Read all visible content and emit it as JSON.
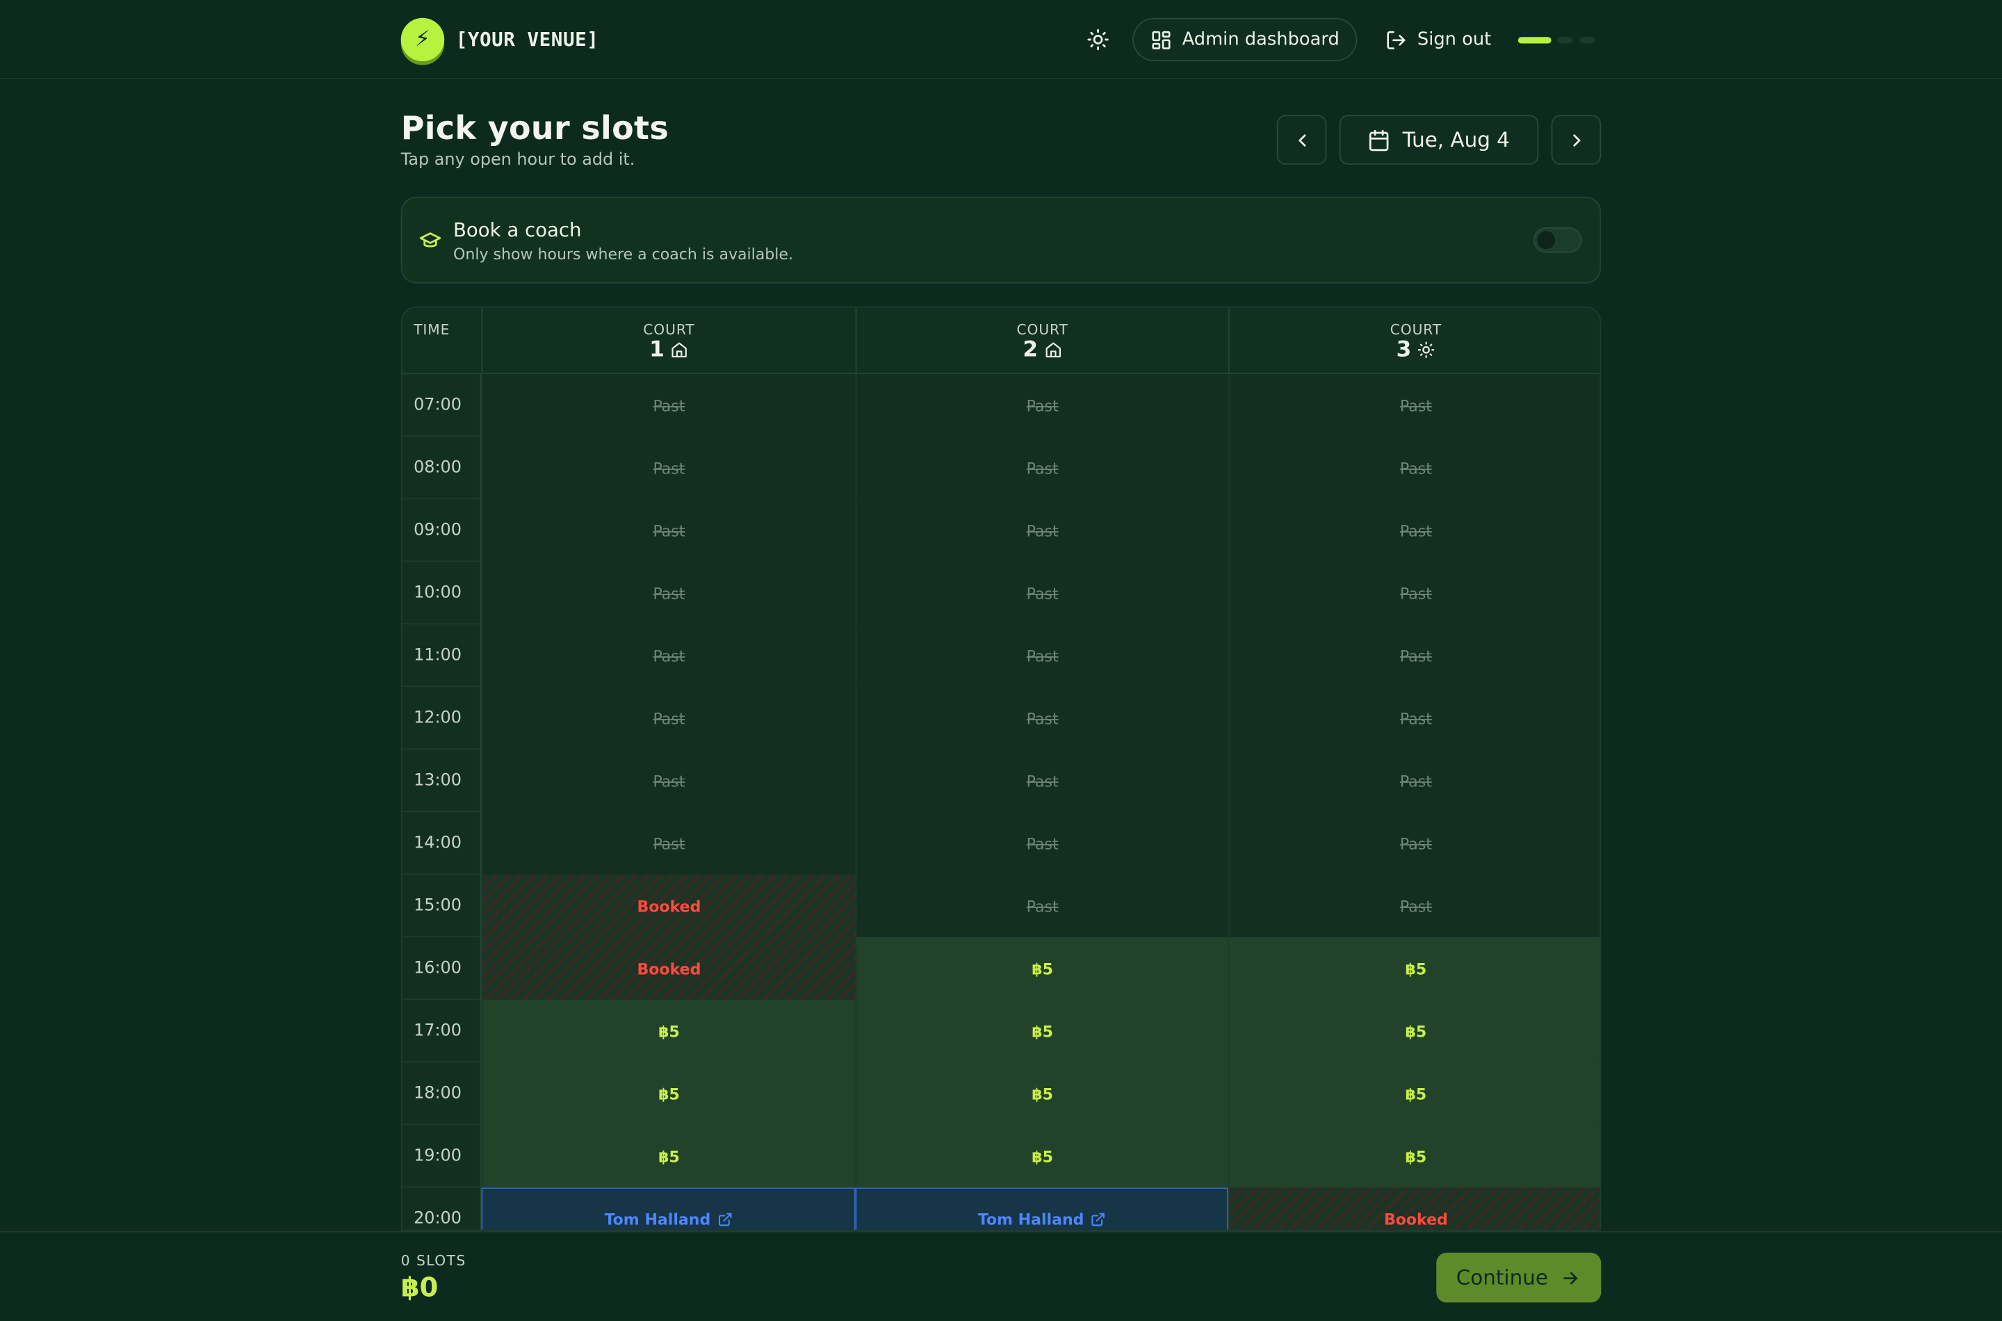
{
  "header": {
    "logo_glyph": "⚡",
    "venue_name": "[YOUR VENUE]",
    "admin_label": "Admin dashboard",
    "signout_label": "Sign out",
    "accent": "#b9f23e"
  },
  "title": {
    "heading": "Pick your slots",
    "subheading": "Tap any open hour to add it."
  },
  "date_nav": {
    "date_label": "Tue, Aug 4"
  },
  "coach": {
    "title": "Book a coach",
    "subtitle": "Only show hours where a coach is available.",
    "toggle_on": false
  },
  "grid": {
    "time_header": "TIME",
    "courts": [
      {
        "label": "COURT",
        "number": "1",
        "icon": "home-icon"
      },
      {
        "label": "COURT",
        "number": "2",
        "icon": "home-icon"
      },
      {
        "label": "COURT",
        "number": "3",
        "icon": "sun-icon"
      }
    ],
    "rows": [
      {
        "time": "07:00",
        "cells": [
          {
            "state": "past",
            "text": "Past"
          },
          {
            "state": "past",
            "text": "Past"
          },
          {
            "state": "past",
            "text": "Past"
          }
        ]
      },
      {
        "time": "08:00",
        "cells": [
          {
            "state": "past",
            "text": "Past"
          },
          {
            "state": "past",
            "text": "Past"
          },
          {
            "state": "past",
            "text": "Past"
          }
        ]
      },
      {
        "time": "09:00",
        "cells": [
          {
            "state": "past",
            "text": "Past"
          },
          {
            "state": "past",
            "text": "Past"
          },
          {
            "state": "past",
            "text": "Past"
          }
        ]
      },
      {
        "time": "10:00",
        "cells": [
          {
            "state": "past",
            "text": "Past"
          },
          {
            "state": "past",
            "text": "Past"
          },
          {
            "state": "past",
            "text": "Past"
          }
        ]
      },
      {
        "time": "11:00",
        "cells": [
          {
            "state": "past",
            "text": "Past"
          },
          {
            "state": "past",
            "text": "Past"
          },
          {
            "state": "past",
            "text": "Past"
          }
        ]
      },
      {
        "time": "12:00",
        "cells": [
          {
            "state": "past",
            "text": "Past"
          },
          {
            "state": "past",
            "text": "Past"
          },
          {
            "state": "past",
            "text": "Past"
          }
        ]
      },
      {
        "time": "13:00",
        "cells": [
          {
            "state": "past",
            "text": "Past"
          },
          {
            "state": "past",
            "text": "Past"
          },
          {
            "state": "past",
            "text": "Past"
          }
        ]
      },
      {
        "time": "14:00",
        "cells": [
          {
            "state": "past",
            "text": "Past"
          },
          {
            "state": "past",
            "text": "Past"
          },
          {
            "state": "past",
            "text": "Past"
          }
        ]
      },
      {
        "time": "15:00",
        "cells": [
          {
            "state": "booked",
            "text": "Booked"
          },
          {
            "state": "past",
            "text": "Past"
          },
          {
            "state": "past",
            "text": "Past"
          }
        ]
      },
      {
        "time": "16:00",
        "cells": [
          {
            "state": "booked",
            "text": "Booked"
          },
          {
            "state": "open",
            "text": "฿5"
          },
          {
            "state": "open",
            "text": "฿5"
          }
        ]
      },
      {
        "time": "17:00",
        "cells": [
          {
            "state": "open",
            "text": "฿5"
          },
          {
            "state": "open",
            "text": "฿5"
          },
          {
            "state": "open",
            "text": "฿5"
          }
        ]
      },
      {
        "time": "18:00",
        "cells": [
          {
            "state": "open",
            "text": "฿5"
          },
          {
            "state": "open",
            "text": "฿5"
          },
          {
            "state": "open",
            "text": "฿5"
          }
        ]
      },
      {
        "time": "19:00",
        "cells": [
          {
            "state": "open",
            "text": "฿5"
          },
          {
            "state": "open",
            "text": "฿5"
          },
          {
            "state": "open",
            "text": "฿5"
          }
        ]
      },
      {
        "time": "20:00",
        "cells": [
          {
            "state": "coach",
            "text": "Tom Halland"
          },
          {
            "state": "coach",
            "text": "Tom Halland"
          },
          {
            "state": "booked",
            "text": "Booked"
          }
        ]
      }
    ]
  },
  "footer": {
    "slots_label": "0 SLOTS",
    "total": "฿0",
    "continue_label": "Continue"
  }
}
